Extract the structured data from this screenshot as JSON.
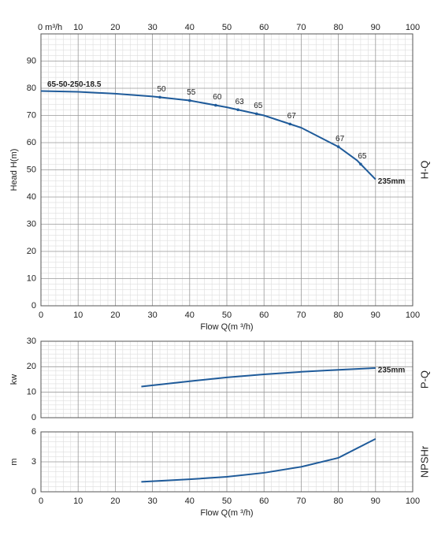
{
  "chart_data": [
    {
      "type": "line",
      "ylabel": "Head H(m)",
      "side_label": "H-Q",
      "xlabel": "Flow Q(m ³/h)",
      "xlim": [
        0,
        100
      ],
      "xticks": [
        0,
        10,
        20,
        30,
        40,
        50,
        60,
        70,
        80,
        90,
        100
      ],
      "x2ticks": [
        {
          "value": 0,
          "label": "0  m³/h"
        },
        10,
        20,
        30,
        40,
        50,
        60,
        70,
        80,
        90,
        100
      ],
      "ylim": [
        0,
        100
      ],
      "yticks": [
        0,
        10,
        20,
        30,
        40,
        50,
        60,
        70,
        80,
        90
      ],
      "grid": true,
      "minor_grid": true,
      "model": "65-50-250-18.5",
      "impeller": "235mm",
      "x": [
        0,
        10,
        20,
        30,
        40,
        50,
        60,
        70,
        80,
        85,
        90
      ],
      "series": [
        {
          "name": "H-Q",
          "color": "#1f5b9a",
          "values": [
            79,
            78.7,
            78,
            77,
            75.5,
            73,
            70,
            65.5,
            58.5,
            53.5,
            46.5
          ]
        }
      ],
      "efficiency_labels": [
        {
          "x": 32,
          "value": 50
        },
        {
          "x": 40,
          "value": 55
        },
        {
          "x": 47,
          "value": 60
        },
        {
          "x": 53,
          "value": 63
        },
        {
          "x": 58,
          "value": 65
        },
        {
          "x": 67,
          "value": 67
        },
        {
          "x": 80,
          "value": 67
        },
        {
          "x": 86,
          "value": 65
        }
      ]
    },
    {
      "type": "line",
      "ylabel": "kw",
      "side_label": "P-Q",
      "impeller": "235mm",
      "xlim": [
        0,
        100
      ],
      "ylim": [
        0,
        30
      ],
      "yticks": [
        0,
        10,
        20,
        30
      ],
      "grid": true,
      "minor_grid": true,
      "x": [
        27,
        40,
        50,
        60,
        70,
        80,
        90
      ],
      "series": [
        {
          "name": "P-Q",
          "color": "#1f5b9a",
          "values": [
            12.2,
            14.3,
            15.8,
            17,
            18,
            18.8,
            19.5
          ]
        }
      ]
    },
    {
      "type": "line",
      "ylabel": "m",
      "side_label": "NPSHr",
      "xlabel": "Flow Q(m ³/h)",
      "xlim": [
        0,
        100
      ],
      "xticks": [
        0,
        10,
        20,
        30,
        40,
        50,
        60,
        70,
        80,
        90,
        100
      ],
      "ylim": [
        0,
        6
      ],
      "yticks": [
        0,
        3,
        6
      ],
      "grid": true,
      "minor_grid": true,
      "x": [
        27,
        40,
        50,
        60,
        70,
        80,
        90
      ],
      "series": [
        {
          "name": "NPSHr",
          "color": "#1f5b9a",
          "values": [
            1.0,
            1.25,
            1.5,
            1.9,
            2.5,
            3.4,
            5.3
          ]
        }
      ]
    }
  ]
}
